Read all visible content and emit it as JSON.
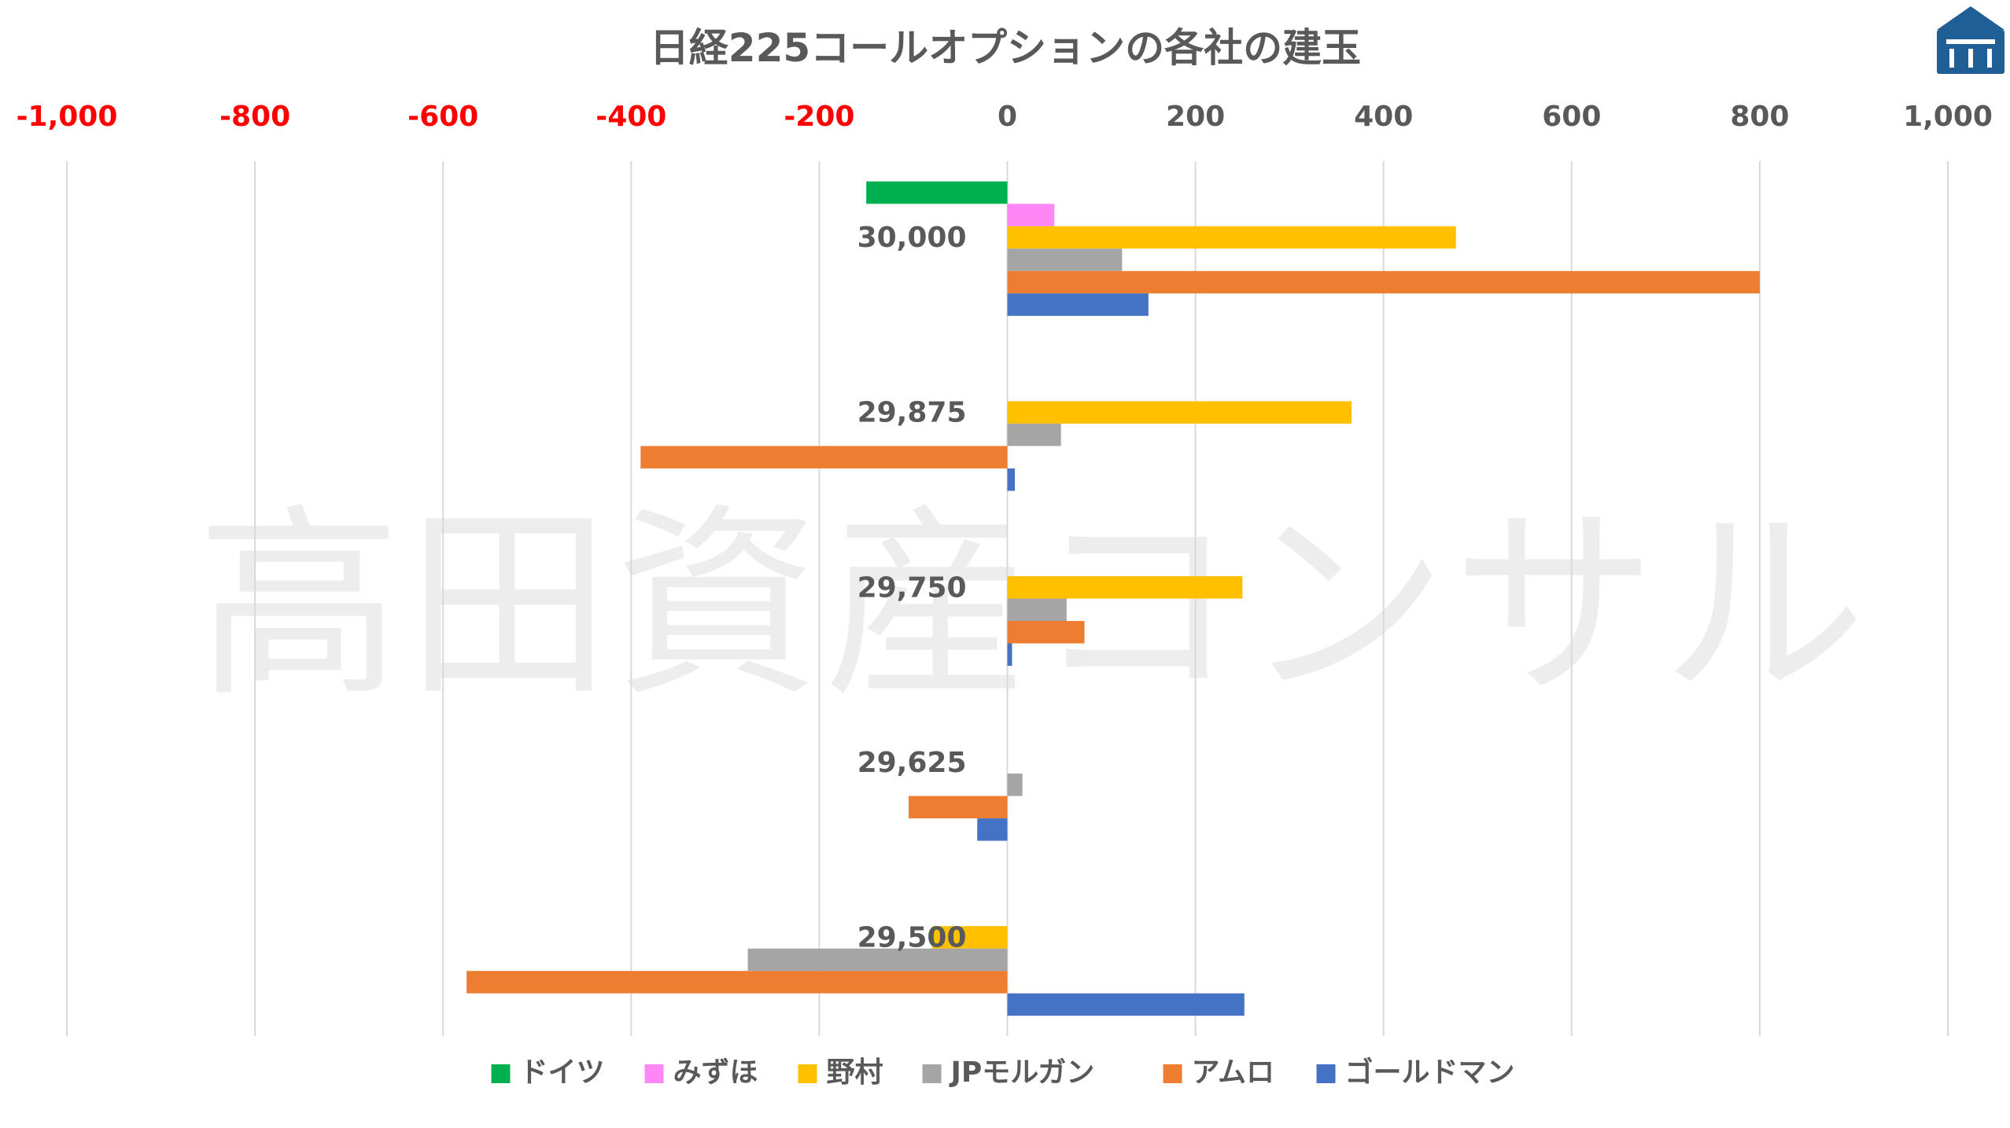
{
  "watermark_text": "高田資産コンサル",
  "colors": {
    "negative_tick": "#ff0000",
    "positive_tick": "#595959",
    "logo": "#1f5f96"
  },
  "chart_data": {
    "type": "bar",
    "orientation": "horizontal",
    "title": "日経225コールオプションの各社の建玉",
    "xlim": [
      -1000,
      1000
    ],
    "x_ticks": [
      -1000,
      -800,
      -600,
      -400,
      -200,
      0,
      200,
      400,
      600,
      800,
      1000
    ],
    "x_tick_labels": [
      "-1,000",
      "-800",
      "-600",
      "-400",
      "-200",
      "0",
      "200",
      "400",
      "600",
      "800",
      "1,000"
    ],
    "grid": true,
    "legend_position": "bottom",
    "categories": [
      "30,000",
      "29,875",
      "29,750",
      "29,625",
      "29,500"
    ],
    "series": [
      {
        "name": "ドイツ",
        "color": "#00b050",
        "values": [
          -150,
          0,
          0,
          0,
          0
        ]
      },
      {
        "name": "みずほ",
        "color": "#ff87f5",
        "values": [
          50,
          0,
          0,
          0,
          0
        ]
      },
      {
        "name": "野村",
        "color": "#ffc000",
        "values": [
          477,
          366,
          250,
          0,
          -80
        ]
      },
      {
        "name": "JPモルガン",
        "color": "#a5a5a5",
        "values": [
          122,
          57,
          63,
          16,
          -276
        ]
      },
      {
        "name": "アムロ",
        "color": "#ed7d31",
        "values": [
          800,
          -390,
          82,
          -105,
          -575
        ]
      },
      {
        "name": "ゴールドマン",
        "color": "#4472c4",
        "values": [
          150,
          8,
          5,
          -32,
          252
        ]
      }
    ]
  }
}
